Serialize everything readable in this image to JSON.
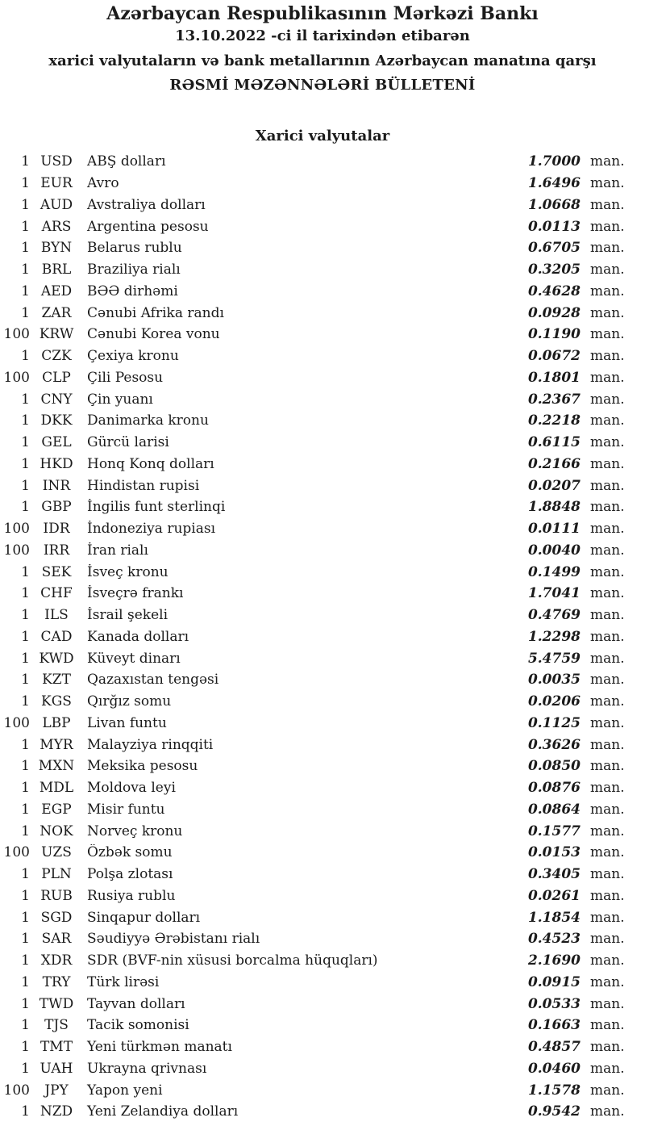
{
  "header": {
    "bank_name": "Azərbaycan Respublikasının Mərkəzi Bankı",
    "date_line": "13.10.2022 -ci il tarixindən etibarən",
    "scope_line": "xarici valyutaların və bank metallarının Azərbaycan manatına qarşı",
    "bulletin_line": "RƏSMİ MƏZƏNNƏLƏRİ BÜLLETENİ"
  },
  "section": {
    "title": "Xarici valyutalar"
  },
  "unit_suffix": "man.",
  "rates": [
    {
      "qty": "1",
      "code": "USD",
      "name": "ABŞ dolları",
      "rate": "1.7000"
    },
    {
      "qty": "1",
      "code": "EUR",
      "name": "Avro",
      "rate": "1.6496"
    },
    {
      "qty": "1",
      "code": "AUD",
      "name": "Avstraliya dolları",
      "rate": "1.0668"
    },
    {
      "qty": "1",
      "code": "ARS",
      "name": "Argentina pesosu",
      "rate": "0.0113"
    },
    {
      "qty": "1",
      "code": "BYN",
      "name": "Belarus rublu",
      "rate": "0.6705"
    },
    {
      "qty": "1",
      "code": "BRL",
      "name": "Braziliya rialı",
      "rate": "0.3205"
    },
    {
      "qty": "1",
      "code": "AED",
      "name": "BƏƏ dirhəmi",
      "rate": "0.4628"
    },
    {
      "qty": "1",
      "code": "ZAR",
      "name": "Cənubi Afrika randı",
      "rate": "0.0928"
    },
    {
      "qty": "100",
      "code": "KRW",
      "name": "Cənubi Korea vonu",
      "rate": "0.1190"
    },
    {
      "qty": "1",
      "code": "CZK",
      "name": "Çexiya kronu",
      "rate": "0.0672"
    },
    {
      "qty": "100",
      "code": "CLP",
      "name": "Çili Pesosu",
      "rate": "0.1801"
    },
    {
      "qty": "1",
      "code": "CNY",
      "name": "Çin yuanı",
      "rate": "0.2367"
    },
    {
      "qty": "1",
      "code": "DKK",
      "name": "Danimarka kronu",
      "rate": "0.2218"
    },
    {
      "qty": "1",
      "code": "GEL",
      "name": "Gürcü larisi",
      "rate": "0.6115"
    },
    {
      "qty": "1",
      "code": "HKD",
      "name": "Honq Konq dolları",
      "rate": "0.2166"
    },
    {
      "qty": "1",
      "code": "INR",
      "name": "Hindistan rupisi",
      "rate": "0.0207"
    },
    {
      "qty": "1",
      "code": "GBP",
      "name": "İngilis funt sterlinqi",
      "rate": "1.8848"
    },
    {
      "qty": "100",
      "code": "IDR",
      "name": "İndoneziya rupiası",
      "rate": "0.0111"
    },
    {
      "qty": "100",
      "code": "IRR",
      "name": "İran rialı",
      "rate": "0.0040"
    },
    {
      "qty": "1",
      "code": "SEK",
      "name": "İsveç kronu",
      "rate": "0.1499"
    },
    {
      "qty": "1",
      "code": "CHF",
      "name": "İsveçrə frankı",
      "rate": "1.7041"
    },
    {
      "qty": "1",
      "code": "ILS",
      "name": "İsrail şekeli",
      "rate": "0.4769"
    },
    {
      "qty": "1",
      "code": "CAD",
      "name": "Kanada dolları",
      "rate": "1.2298"
    },
    {
      "qty": "1",
      "code": "KWD",
      "name": "Küveyt dinarı",
      "rate": "5.4759"
    },
    {
      "qty": "1",
      "code": "KZT",
      "name": "Qazaxıstan tengəsi",
      "rate": "0.0035"
    },
    {
      "qty": "1",
      "code": "KGS",
      "name": "Qırğız somu",
      "rate": "0.0206"
    },
    {
      "qty": "100",
      "code": "LBP",
      "name": "Livan funtu",
      "rate": "0.1125"
    },
    {
      "qty": "1",
      "code": "MYR",
      "name": "Malayziya rinqqiti",
      "rate": "0.3626"
    },
    {
      "qty": "1",
      "code": "MXN",
      "name": "Meksika pesosu",
      "rate": "0.0850"
    },
    {
      "qty": "1",
      "code": "MDL",
      "name": "Moldova leyi",
      "rate": "0.0876"
    },
    {
      "qty": "1",
      "code": "EGP",
      "name": "Misir funtu",
      "rate": "0.0864"
    },
    {
      "qty": "1",
      "code": "NOK",
      "name": "Norveç kronu",
      "rate": "0.1577"
    },
    {
      "qty": "100",
      "code": "UZS",
      "name": "Özbək somu",
      "rate": "0.0153"
    },
    {
      "qty": "1",
      "code": "PLN",
      "name": "Polşa zlotası",
      "rate": "0.3405"
    },
    {
      "qty": "1",
      "code": "RUB",
      "name": "Rusiya rublu",
      "rate": "0.0261"
    },
    {
      "qty": "1",
      "code": "SGD",
      "name": "Sinqapur dolları",
      "rate": "1.1854"
    },
    {
      "qty": "1",
      "code": "SAR",
      "name": "Səudiyyə Ərəbistanı rialı",
      "rate": "0.4523"
    },
    {
      "qty": "1",
      "code": "XDR",
      "name": "SDR (BVF-nin xüsusi borcalma hüquqları)",
      "rate": "2.1690"
    },
    {
      "qty": "1",
      "code": "TRY",
      "name": "Türk lirəsi",
      "rate": "0.0915"
    },
    {
      "qty": "1",
      "code": "TWD",
      "name": "Tayvan dolları",
      "rate": "0.0533"
    },
    {
      "qty": "1",
      "code": "TJS",
      "name": "Tacik somonisi",
      "rate": "0.1663"
    },
    {
      "qty": "1",
      "code": "TMT",
      "name": "Yeni türkmən manatı",
      "rate": "0.4857"
    },
    {
      "qty": "1",
      "code": "UAH",
      "name": "Ukrayna qrivnası",
      "rate": "0.0460"
    },
    {
      "qty": "100",
      "code": "JPY",
      "name": "Yapon yeni",
      "rate": "1.1578"
    },
    {
      "qty": "1",
      "code": "NZD",
      "name": "Yeni Zelandiya dolları",
      "rate": "0.9542"
    }
  ]
}
